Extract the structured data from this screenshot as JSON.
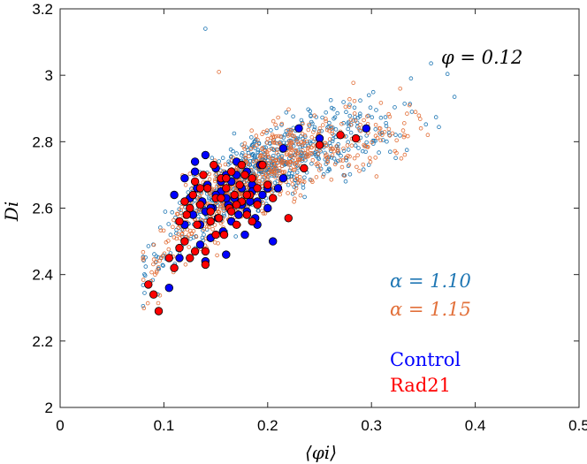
{
  "chart_data": {
    "type": "scatter",
    "title": "",
    "xlabel": "⟨φi⟩",
    "ylabel": "Di",
    "xlim": [
      0,
      0.5
    ],
    "ylim": [
      2,
      3.2
    ],
    "xticks": [
      "0",
      "0.1",
      "0.2",
      "0.3",
      "0.4",
      "0.5"
    ],
    "yticks": [
      "2",
      "2.2",
      "2.4",
      "2.6",
      "2.8",
      "3",
      "3.2"
    ],
    "grid": false,
    "annotation": "φ = 0.12",
    "alpha_labels": [
      "α = 1.10",
      "α = 1.15"
    ],
    "legend_labels": [
      "Control",
      "Rad21"
    ],
    "colors": {
      "alpha_110": "#1f77b4",
      "alpha_115": "#e2703a",
      "control": "#0000ff",
      "rad21": "#ff0000"
    },
    "cloud_110": {
      "n": 700,
      "x_range": [
        0.08,
        0.38
      ],
      "trend": [
        [
          0.08,
          2.39
        ],
        [
          0.12,
          2.56
        ],
        [
          0.18,
          2.7
        ],
        [
          0.24,
          2.78
        ],
        [
          0.3,
          2.82
        ],
        [
          0.38,
          2.9
        ]
      ]
    },
    "cloud_115": {
      "n": 700,
      "x_range": [
        0.08,
        0.36
      ],
      "trend": [
        [
          0.08,
          2.38
        ],
        [
          0.12,
          2.55
        ],
        [
          0.18,
          2.69
        ],
        [
          0.24,
          2.77
        ],
        [
          0.3,
          2.81
        ],
        [
          0.36,
          2.89
        ]
      ]
    },
    "series": [
      {
        "name": "Control",
        "x": [
          0.105,
          0.115,
          0.12,
          0.125,
          0.128,
          0.13,
          0.132,
          0.135,
          0.137,
          0.14,
          0.142,
          0.145,
          0.147,
          0.15,
          0.152,
          0.155,
          0.157,
          0.16,
          0.162,
          0.165,
          0.168,
          0.17,
          0.172,
          0.175,
          0.178,
          0.18,
          0.183,
          0.185,
          0.188,
          0.19,
          0.193,
          0.195,
          0.2,
          0.205,
          0.21,
          0.215,
          0.13,
          0.14,
          0.15,
          0.16,
          0.17,
          0.18,
          0.19,
          0.11,
          0.12,
          0.135,
          0.145,
          0.155,
          0.165,
          0.175,
          0.185,
          0.2,
          0.215,
          0.23,
          0.25,
          0.295,
          0.14,
          0.16
        ],
        "y": [
          2.36,
          2.45,
          2.69,
          2.63,
          2.58,
          2.71,
          2.66,
          2.55,
          2.62,
          2.59,
          2.67,
          2.51,
          2.6,
          2.72,
          2.57,
          2.65,
          2.53,
          2.7,
          2.61,
          2.68,
          2.63,
          2.74,
          2.58,
          2.66,
          2.52,
          2.71,
          2.62,
          2.67,
          2.57,
          2.55,
          2.73,
          2.64,
          2.6,
          2.5,
          2.66,
          2.69,
          2.74,
          2.76,
          2.64,
          2.63,
          2.7,
          2.59,
          2.62,
          2.64,
          2.55,
          2.49,
          2.6,
          2.68,
          2.56,
          2.61,
          2.65,
          2.66,
          2.78,
          2.84,
          2.81,
          2.84,
          2.44,
          2.46
        ]
      },
      {
        "name": "Rad21",
        "x": [
          0.085,
          0.09,
          0.095,
          0.11,
          0.115,
          0.12,
          0.122,
          0.125,
          0.128,
          0.13,
          0.132,
          0.135,
          0.138,
          0.14,
          0.142,
          0.145,
          0.148,
          0.15,
          0.153,
          0.155,
          0.158,
          0.16,
          0.163,
          0.165,
          0.168,
          0.17,
          0.173,
          0.175,
          0.178,
          0.18,
          0.183,
          0.185,
          0.19,
          0.195,
          0.2,
          0.205,
          0.22,
          0.235,
          0.25,
          0.27,
          0.285,
          0.12,
          0.13,
          0.14,
          0.15,
          0.16,
          0.17,
          0.18,
          0.19,
          0.105,
          0.115,
          0.125,
          0.135,
          0.145,
          0.155,
          0.165,
          0.175,
          0.185
        ],
        "y": [
          2.37,
          2.34,
          2.29,
          2.42,
          2.48,
          2.62,
          2.58,
          2.45,
          2.64,
          2.68,
          2.55,
          2.61,
          2.7,
          2.47,
          2.66,
          2.59,
          2.73,
          2.63,
          2.57,
          2.69,
          2.52,
          2.66,
          2.6,
          2.71,
          2.64,
          2.55,
          2.67,
          2.62,
          2.7,
          2.58,
          2.64,
          2.56,
          2.61,
          2.73,
          2.67,
          2.63,
          2.57,
          2.72,
          2.79,
          2.82,
          2.81,
          2.5,
          2.47,
          2.43,
          2.52,
          2.69,
          2.61,
          2.64,
          2.66,
          2.45,
          2.56,
          2.6,
          2.66,
          2.56,
          2.63,
          2.59,
          2.73,
          2.69
        ]
      }
    ]
  }
}
